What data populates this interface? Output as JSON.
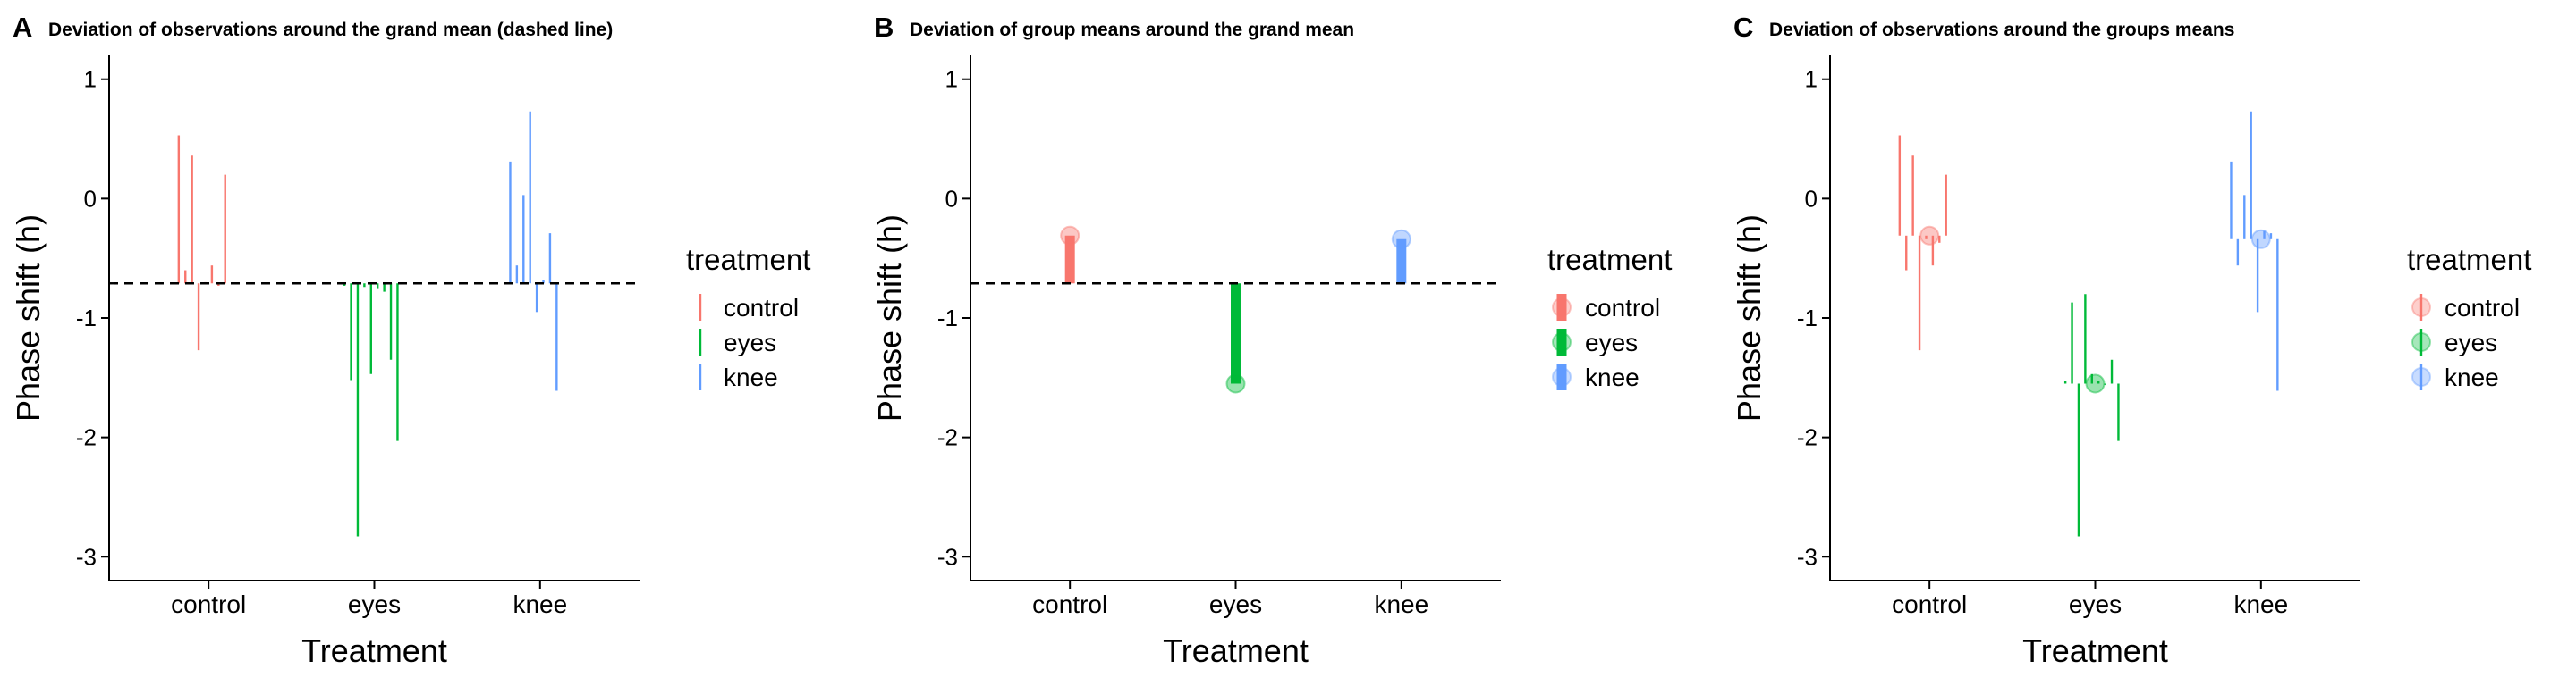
{
  "chart_data": [
    {
      "type": "segment",
      "panel_letter": "A",
      "title": "Deviation of observations around the grand mean (dashed line)",
      "xlabel": "Treatment",
      "ylabel": "Phase shift (h)",
      "categories": [
        "control",
        "eyes",
        "knee"
      ],
      "ylim": [
        -3.2,
        1.2
      ],
      "yticks": [
        1,
        0,
        -1,
        -2,
        -3
      ],
      "grand_mean": -0.71,
      "show_group_means": false,
      "legend": {
        "title": "treatment",
        "placement": "right",
        "entries": [
          "control",
          "eyes",
          "knee"
        ]
      },
      "colors": {
        "control": "#F8766D",
        "eyes": "#00BA38",
        "knee": "#619CFF"
      },
      "series": [
        {
          "name": "control",
          "x": [
            0.82,
            0.86,
            0.9,
            0.94,
            0.98,
            1.02,
            1.06,
            1.1
          ],
          "values": [
            0.53,
            -0.6,
            0.36,
            -1.27,
            -0.7,
            -0.56,
            -0.73,
            0.2
          ]
        },
        {
          "name": "eyes",
          "x": [
            1.82,
            1.86,
            1.9,
            1.94,
            1.98,
            2.02,
            2.06,
            2.1,
            2.14
          ],
          "values": [
            -0.73,
            -1.52,
            -2.83,
            -0.74,
            -1.47,
            -0.75,
            -0.78,
            -1.35,
            -2.03
          ]
        },
        {
          "name": "knee",
          "x": [
            2.82,
            2.86,
            2.9,
            2.94,
            2.98,
            3.02,
            3.06,
            3.1
          ],
          "values": [
            0.31,
            -0.56,
            0.03,
            0.73,
            -0.95,
            -0.68,
            -0.29,
            -1.61
          ]
        }
      ]
    },
    {
      "type": "segment",
      "panel_letter": "B",
      "title": "Deviation of group means around the grand mean",
      "xlabel": "Treatment",
      "ylabel": "Phase shift (h)",
      "categories": [
        "control",
        "eyes",
        "knee"
      ],
      "ylim": [
        -3.2,
        1.2
      ],
      "yticks": [
        1,
        0,
        -1,
        -2,
        -3
      ],
      "grand_mean": -0.71,
      "legend": {
        "title": "treatment",
        "placement": "right",
        "entries": [
          "control",
          "eyes",
          "knee"
        ]
      },
      "colors": {
        "control": "#F8766D",
        "eyes": "#00BA38",
        "knee": "#619CFF"
      },
      "group_means": {
        "control": -0.31,
        "eyes": -1.55,
        "knee": -0.34
      }
    },
    {
      "type": "segment",
      "panel_letter": "C",
      "title": "Deviation of observations around the groups means",
      "xlabel": "Treatment",
      "ylabel": "Phase shift (h)",
      "categories": [
        "control",
        "eyes",
        "knee"
      ],
      "ylim": [
        -3.2,
        1.2
      ],
      "yticks": [
        1,
        0,
        -1,
        -2,
        -3
      ],
      "legend": {
        "title": "treatment",
        "placement": "right",
        "entries": [
          "control",
          "eyes",
          "knee"
        ]
      },
      "colors": {
        "control": "#F8766D",
        "eyes": "#00BA38",
        "knee": "#619CFF"
      },
      "group_means": {
        "control": -0.31,
        "eyes": -1.55,
        "knee": -0.34
      },
      "series": [
        {
          "name": "control",
          "x": [
            0.82,
            0.86,
            0.9,
            0.94,
            0.98,
            1.02,
            1.06,
            1.1
          ],
          "values": [
            0.53,
            -0.6,
            0.36,
            -1.27,
            -0.34,
            -0.56,
            -0.37,
            0.2
          ]
        },
        {
          "name": "eyes",
          "x": [
            1.82,
            1.86,
            1.9,
            1.94,
            1.98,
            2.02,
            2.06,
            2.1,
            2.14
          ],
          "values": [
            -1.53,
            -0.87,
            -2.83,
            -0.8,
            -1.47,
            -1.53,
            -1.56,
            -1.35,
            -2.03
          ]
        },
        {
          "name": "knee",
          "x": [
            2.82,
            2.86,
            2.9,
            2.94,
            2.98,
            3.02,
            3.06,
            3.1
          ],
          "values": [
            0.31,
            -0.56,
            0.03,
            0.73,
            -0.95,
            -0.27,
            -0.29,
            -1.61
          ]
        }
      ]
    }
  ]
}
